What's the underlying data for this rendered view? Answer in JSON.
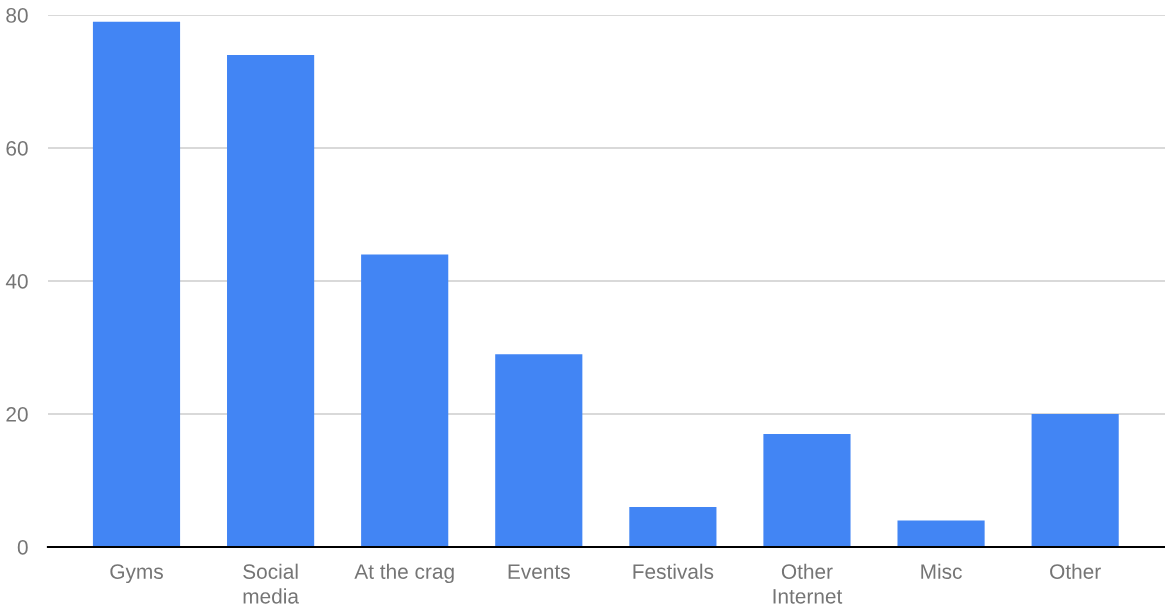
{
  "chart_data": {
    "type": "bar",
    "categories": [
      "Gyms",
      "Social\nmedia",
      "At the crag",
      "Events",
      "Festivals",
      "Other\nInternet",
      "Misc",
      "Other"
    ],
    "values": [
      79,
      74,
      44,
      29,
      6,
      17,
      4,
      20
    ],
    "color": "#4285f4",
    "ylim": [
      0,
      80
    ],
    "yticks": [
      0,
      20,
      40,
      60,
      80
    ],
    "grid": "y",
    "legend": false
  }
}
